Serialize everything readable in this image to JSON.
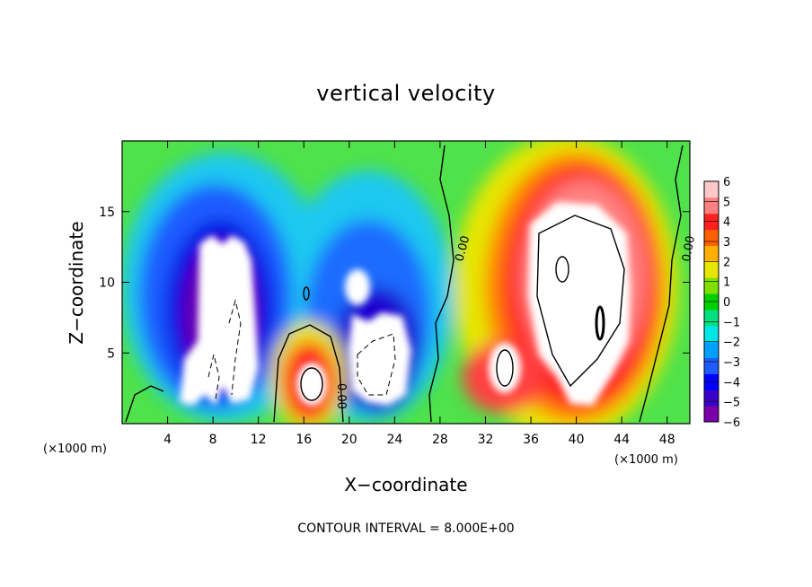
{
  "chart_data": {
    "type": "heatmap",
    "title": "vertical velocity",
    "xlabel": "X−coordinate",
    "ylabel": "Z−coordinate",
    "x_unit_left": "(×1000 m)",
    "x_unit_right": "(×1000 m)",
    "xlim": [
      0,
      50
    ],
    "ylim": [
      0,
      20
    ],
    "x_ticks": [
      4,
      8,
      12,
      16,
      20,
      24,
      28,
      32,
      36,
      40,
      44,
      48
    ],
    "y_ticks": [
      5,
      10,
      15
    ],
    "colorbar": {
      "range": [
        -6,
        6
      ],
      "ticks": [
        "6",
        "5",
        "4",
        "3",
        "2",
        "1",
        "0",
        "−1",
        "−2",
        "−3",
        "−4",
        "−5",
        "−6"
      ],
      "colors": [
        "#7a00aa",
        "#3b00c8",
        "#0000ff",
        "#1e5cff",
        "#00a0ff",
        "#00e6e6",
        "#00e080",
        "#00d000",
        "#7ee000",
        "#e6e600",
        "#ffb000",
        "#ff6000",
        "#ff2020",
        "#ff8080",
        "#ffc8c8"
      ]
    },
    "contour_label": "0.00",
    "contour_interval_text": "CONTOUR INTERVAL = 8.000E+00",
    "grid": false,
    "features": [
      {
        "kind": "updraft_core",
        "x": 17,
        "z": 3,
        "value": 6
      },
      {
        "kind": "updraft_core",
        "x": 40,
        "z": 11,
        "value": 6
      },
      {
        "kind": "downdraft_core",
        "x": 8,
        "z": 8,
        "value": -6
      },
      {
        "kind": "downdraft_core",
        "x": 22,
        "z": 6,
        "value": -6
      }
    ]
  }
}
